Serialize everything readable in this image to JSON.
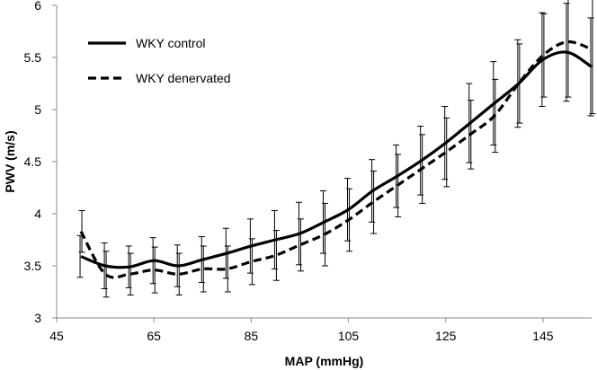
{
  "chart_data": {
    "type": "line",
    "title": "",
    "xlabel": "MAP (mmHg)",
    "ylabel": "PWV (m/s)",
    "xlim": [
      45,
      155
    ],
    "ylim": [
      3,
      6
    ],
    "xticks": [
      45,
      65,
      85,
      105,
      125,
      145
    ],
    "yticks": [
      3,
      3.5,
      4,
      4.5,
      5,
      5.5,
      6
    ],
    "ytick_labels": [
      "3",
      "3.5",
      "4",
      "4.5",
      "5",
      "5.5",
      "6"
    ],
    "grid": false,
    "legend_position": "top-left",
    "series": [
      {
        "name": "WKY control",
        "style": "solid",
        "color": "#000000",
        "x": [
          50,
          55,
          60,
          65,
          70,
          75,
          80,
          85,
          90,
          95,
          100,
          105,
          110,
          115,
          120,
          125,
          130,
          135,
          140,
          145,
          150,
          155
        ],
        "y": [
          3.59,
          3.5,
          3.49,
          3.55,
          3.5,
          3.56,
          3.62,
          3.69,
          3.75,
          3.81,
          3.92,
          4.04,
          4.22,
          4.36,
          4.51,
          4.68,
          4.87,
          5.06,
          5.25,
          5.48,
          5.55,
          5.41
        ],
        "error": [
          0.2,
          0.22,
          0.2,
          0.22,
          0.2,
          0.22,
          0.24,
          0.26,
          0.28,
          0.3,
          0.3,
          0.3,
          0.3,
          0.3,
          0.33,
          0.35,
          0.38,
          0.4,
          0.42,
          0.45,
          0.47,
          0.47
        ]
      },
      {
        "name": "WKY denervated",
        "style": "dashed",
        "color": "#000000",
        "x": [
          50,
          55,
          60,
          65,
          70,
          75,
          80,
          85,
          90,
          95,
          100,
          105,
          110,
          115,
          120,
          125,
          130,
          135,
          140,
          145,
          150,
          155
        ],
        "y": [
          3.83,
          3.42,
          3.42,
          3.46,
          3.42,
          3.47,
          3.47,
          3.54,
          3.6,
          3.7,
          3.8,
          3.94,
          4.11,
          4.27,
          4.43,
          4.59,
          4.76,
          4.94,
          5.25,
          5.52,
          5.65,
          5.58
        ],
        "error": [
          0.2,
          0.22,
          0.2,
          0.22,
          0.2,
          0.22,
          0.22,
          0.22,
          0.24,
          0.25,
          0.3,
          0.3,
          0.3,
          0.3,
          0.33,
          0.33,
          0.33,
          0.35,
          0.38,
          0.4,
          0.53,
          0.62
        ]
      }
    ]
  }
}
